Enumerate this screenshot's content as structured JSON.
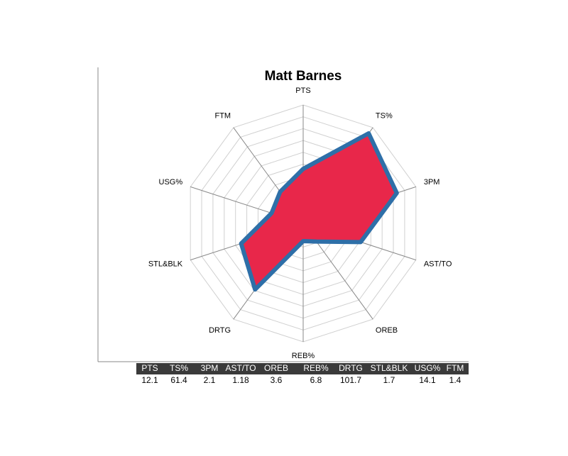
{
  "chart_data": {
    "type": "radar",
    "title": "Matt Barnes",
    "categories": [
      "PTS",
      "TS%",
      "3PM",
      "AST/TO",
      "OREB",
      "REB%",
      "DRTG",
      "STL&BLK",
      "USG%",
      "FTM"
    ],
    "values": [
      4.6,
      9.4,
      8.3,
      5.1,
      1.9,
      1.5,
      6.9,
      5.5,
      2.8,
      3.3
    ],
    "color": "#e8274a",
    "line_color": "#2e6fa8",
    "rlim": [
      0,
      10
    ],
    "rticks": [
      1,
      2,
      3,
      4,
      5,
      6,
      7,
      8,
      9,
      10
    ],
    "grid": true
  },
  "table": {
    "values": [
      12.1,
      61.4,
      2.1,
      1.18,
      3.6,
      6.8,
      101.7,
      1.7,
      14.1,
      1.4
    ]
  }
}
